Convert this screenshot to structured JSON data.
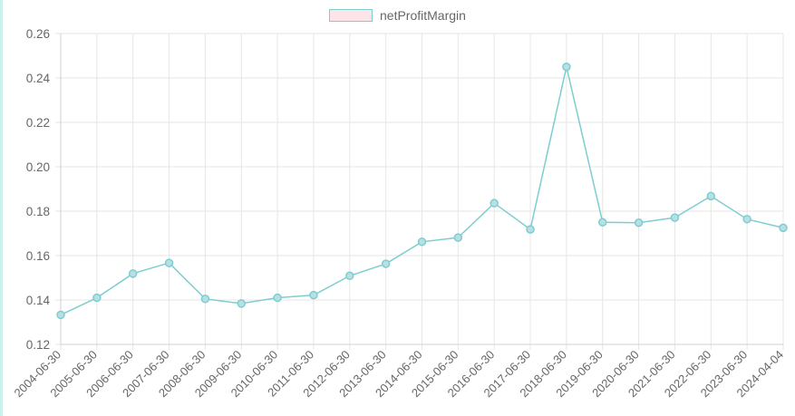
{
  "colors": {
    "line": "#7ecdd0",
    "point_fill": "#b8dfe3",
    "legend_fill": "#fde4e8",
    "grid": "#e6e6e6",
    "axis": "#d0d0d0",
    "text": "#666666"
  },
  "chart_data": {
    "type": "line",
    "categories": [
      "2004-06-30",
      "2005-06-30",
      "2006-06-30",
      "2007-06-30",
      "2008-06-30",
      "2009-06-30",
      "2010-06-30",
      "2011-06-30",
      "2012-06-30",
      "2013-06-30",
      "2014-06-30",
      "2015-06-30",
      "2016-06-30",
      "2017-06-30",
      "2018-06-30",
      "2019-06-30",
      "2020-06-30",
      "2021-06-30",
      "2022-06-30",
      "2023-06-30",
      "2024-04-04"
    ],
    "series": [
      {
        "name": "netProfitMargin",
        "values": [
          0.1333,
          0.141,
          0.1519,
          0.1567,
          0.1405,
          0.1384,
          0.141,
          0.1422,
          0.1509,
          0.1563,
          0.1662,
          0.1681,
          0.1836,
          0.1718,
          0.245,
          0.175,
          0.1748,
          0.1771,
          0.1868,
          0.1764,
          0.1725
        ]
      }
    ],
    "ylim": [
      0.12,
      0.26
    ],
    "yticks": [
      "0.12",
      "0.14",
      "0.16",
      "0.18",
      "0.20",
      "0.22",
      "0.24",
      "0.26"
    ],
    "grid": true,
    "legend": "top-center"
  }
}
